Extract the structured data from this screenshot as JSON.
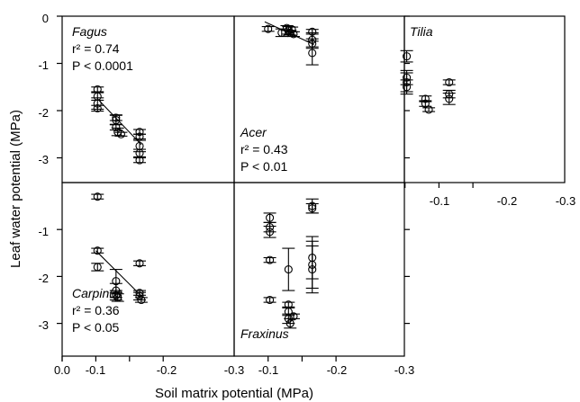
{
  "axes": {
    "xlabel": "Soil matrix potential (MPa)",
    "ylabel": "Leaf water potential (MPa)",
    "x_ticks_bottom": [
      "0.0",
      "-0.1",
      "-0.2",
      "-0.3"
    ],
    "x_ticks_topright": [
      "-0.1",
      "-0.2",
      "-0.3"
    ],
    "y_ticks_top": [
      "0",
      "-1",
      "-2",
      "-3"
    ],
    "y_ticks_bottom": [
      "-1",
      "-2",
      "-3"
    ]
  },
  "chart_data": [
    {
      "type": "scatter",
      "panel": "Fagus",
      "title": "Fagus",
      "r2_text": "r² = 0.74",
      "p_text": "P < 0.0001",
      "xlim": [
        0,
        -0.3
      ],
      "ylim": [
        0,
        -3.3
      ],
      "points": [
        {
          "x": -0.105,
          "y": -1.55,
          "err": 0.05
        },
        {
          "x": -0.105,
          "y": -1.7,
          "err": 0.08
        },
        {
          "x": -0.105,
          "y": -1.85,
          "err": 0.12
        },
        {
          "x": -0.105,
          "y": -1.95,
          "err": 0.06
        },
        {
          "x": -0.16,
          "y": -2.15,
          "err": 0.06
        },
        {
          "x": -0.16,
          "y": -2.2,
          "err": 0.1
        },
        {
          "x": -0.16,
          "y": -2.35,
          "err": 0.06
        },
        {
          "x": -0.165,
          "y": -2.45,
          "err": 0.08
        },
        {
          "x": -0.175,
          "y": -2.5,
          "err": 0.04
        },
        {
          "x": -0.23,
          "y": -2.45,
          "err": 0.05
        },
        {
          "x": -0.23,
          "y": -2.55,
          "err": 0.05
        },
        {
          "x": -0.23,
          "y": -2.75,
          "err": 0.12
        },
        {
          "x": -0.23,
          "y": -2.9,
          "err": 0.08
        },
        {
          "x": -0.23,
          "y": -3.05,
          "err": 0.05
        }
      ],
      "fit": {
        "x": [
          -0.105,
          -0.235
        ],
        "y": [
          -1.75,
          -2.72
        ]
      }
    },
    {
      "type": "scatter",
      "panel": "Acer",
      "title": "Acer",
      "r2_text": "r² = 0.43",
      "p_text": "P < 0.01",
      "xlim": [
        0,
        -0.3
      ],
      "ylim": [
        0,
        -3.3
      ],
      "points": [
        {
          "x": -0.1,
          "y": -0.27,
          "err": 0.05
        },
        {
          "x": -0.14,
          "y": -0.35,
          "err": 0.08
        },
        {
          "x": -0.155,
          "y": -0.25,
          "err": 0.05
        },
        {
          "x": -0.16,
          "y": -0.3,
          "err": 0.08
        },
        {
          "x": -0.165,
          "y": -0.35,
          "err": 0.05
        },
        {
          "x": -0.17,
          "y": -0.28,
          "err": 0.05
        },
        {
          "x": -0.175,
          "y": -0.38,
          "err": 0.05
        },
        {
          "x": -0.23,
          "y": -0.33,
          "err": 0.05
        },
        {
          "x": -0.23,
          "y": -0.5,
          "err": 0.15
        },
        {
          "x": -0.23,
          "y": -0.58,
          "err": 0.1
        },
        {
          "x": -0.23,
          "y": -0.78,
          "err": 0.25
        }
      ],
      "fit": {
        "x": [
          -0.09,
          -0.235
        ],
        "y": [
          -0.12,
          -0.6
        ]
      }
    },
    {
      "type": "scatter",
      "panel": "Tilia",
      "title": "Tilia",
      "xlim": [
        0,
        -0.3
      ],
      "ylim": [
        0,
        -3.3
      ],
      "points": [
        {
          "x": -0.105,
          "y": -0.85,
          "err": 0.12
        },
        {
          "x": -0.105,
          "y": -1.3,
          "err": 0.15
        },
        {
          "x": -0.105,
          "y": -1.4,
          "err": 0.2
        },
        {
          "x": -0.105,
          "y": -1.5,
          "err": 0.15
        },
        {
          "x": -0.16,
          "y": -1.75,
          "err": 0.06
        },
        {
          "x": -0.16,
          "y": -1.85,
          "err": 0.06
        },
        {
          "x": -0.17,
          "y": -1.98,
          "err": 0.04
        },
        {
          "x": -0.23,
          "y": -1.4,
          "err": 0.05
        },
        {
          "x": -0.23,
          "y": -1.65,
          "err": 0.08
        },
        {
          "x": -0.23,
          "y": -1.75,
          "err": 0.12
        }
      ]
    },
    {
      "type": "scatter",
      "panel": "Carpinus",
      "title": "Carpinus",
      "r2_text": "r² = 0.36",
      "p_text": "P < 0.05",
      "xlim": [
        0,
        -0.3
      ],
      "ylim": [
        0,
        -3.5
      ],
      "points": [
        {
          "x": -0.105,
          "y": -0.3,
          "err": 0.05
        },
        {
          "x": -0.105,
          "y": -1.45,
          "err": 0.05
        },
        {
          "x": -0.105,
          "y": -1.8,
          "err": 0.08
        },
        {
          "x": -0.16,
          "y": -2.1,
          "err": 0.25
        },
        {
          "x": -0.16,
          "y": -2.3,
          "err": 0.15
        },
        {
          "x": -0.16,
          "y": -2.4,
          "err": 0.1
        },
        {
          "x": -0.165,
          "y": -2.45,
          "err": 0.08
        },
        {
          "x": -0.23,
          "y": -1.72,
          "err": 0.05
        },
        {
          "x": -0.23,
          "y": -2.35,
          "err": 0.05
        },
        {
          "x": -0.23,
          "y": -2.42,
          "err": 0.08
        },
        {
          "x": -0.235,
          "y": -2.5,
          "err": 0.05
        }
      ],
      "fit": {
        "x": [
          -0.1,
          -0.24
        ],
        "y": [
          -1.45,
          -2.45
        ]
      }
    },
    {
      "type": "scatter",
      "panel": "Fraxinus",
      "title": "Fraxinus",
      "xlim": [
        0,
        -0.3
      ],
      "ylim": [
        0,
        -3.5
      ],
      "points": [
        {
          "x": -0.105,
          "y": -0.75,
          "err": 0.1
        },
        {
          "x": -0.105,
          "y": -0.95,
          "err": 0.1
        },
        {
          "x": -0.105,
          "y": -1.05,
          "err": 0.12
        },
        {
          "x": -0.105,
          "y": -1.65,
          "err": 0.05
        },
        {
          "x": -0.105,
          "y": -2.5,
          "err": 0.05
        },
        {
          "x": -0.16,
          "y": -1.85,
          "err": 0.45
        },
        {
          "x": -0.16,
          "y": -2.6,
          "err": 0.05
        },
        {
          "x": -0.16,
          "y": -2.75,
          "err": 0.08
        },
        {
          "x": -0.16,
          "y": -2.9,
          "err": 0.1
        },
        {
          "x": -0.165,
          "y": -3.0,
          "err": 0.1
        },
        {
          "x": -0.175,
          "y": -2.85,
          "err": 0.05
        },
        {
          "x": -0.23,
          "y": -0.5,
          "err": 0.15
        },
        {
          "x": -0.23,
          "y": -0.55,
          "err": 0.1
        },
        {
          "x": -0.23,
          "y": -1.6,
          "err": 0.45
        },
        {
          "x": -0.23,
          "y": -1.75,
          "err": 0.5
        },
        {
          "x": -0.23,
          "y": -1.85,
          "err": 0.5
        }
      ]
    }
  ]
}
